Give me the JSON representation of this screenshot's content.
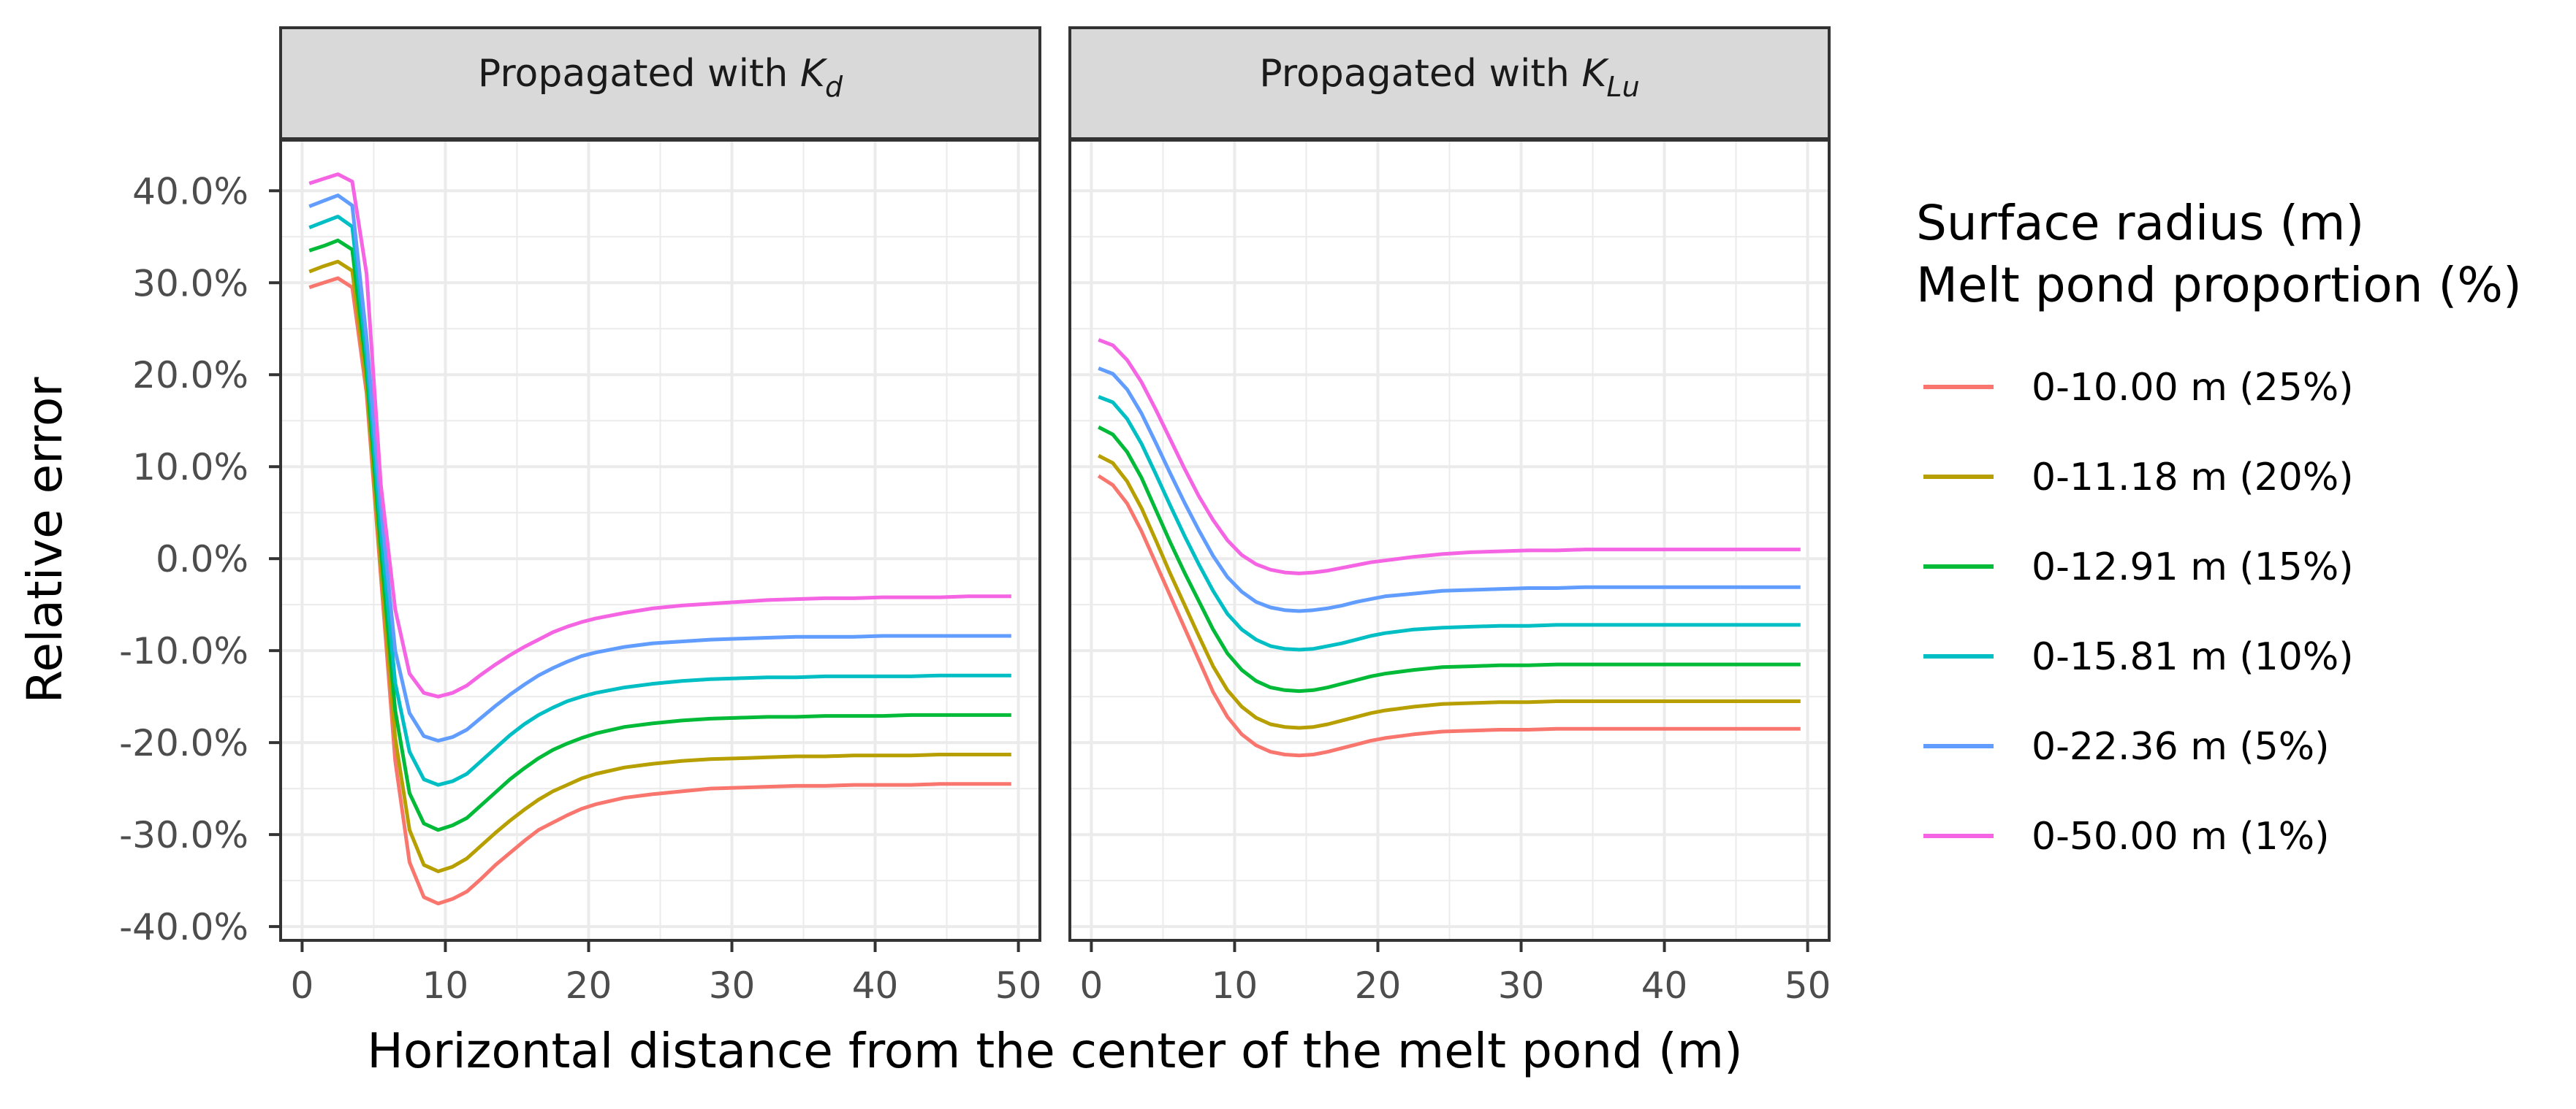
{
  "chart_data": {
    "type": "line",
    "xlabel": "Horizontal distance from the center of the melt pond (m)",
    "ylabel": "Relative error",
    "xlim": [
      -1.5,
      51.5
    ],
    "ylim": [
      -41.5,
      45.5
    ],
    "xticks": [
      0,
      10,
      20,
      30,
      40,
      50
    ],
    "xtick_labels": [
      "0",
      "10",
      "20",
      "30",
      "40",
      "50"
    ],
    "yticks": [
      -40,
      -30,
      -20,
      -10,
      0,
      10,
      20,
      30,
      40
    ],
    "ytick_labels": [
      "-40.0%",
      "-30.0%",
      "-20.0%",
      "-10.0%",
      "0.0%",
      "10.0%",
      "20.0%",
      "30.0%",
      "40.0%"
    ],
    "grid": true,
    "legend": {
      "title_line1": "Surface radius (m)",
      "title_line2": "Melt pond proportion (%)",
      "position": "right"
    },
    "x": [
      0.5,
      1.5,
      2.5,
      3.5,
      4.5,
      5.5,
      6.5,
      7.5,
      8.5,
      9.5,
      10.5,
      11.5,
      12.5,
      13.5,
      14.5,
      15.5,
      16.5,
      17.5,
      18.5,
      19.5,
      20.5,
      22.5,
      24.5,
      26.5,
      28.5,
      30.5,
      32.5,
      34.5,
      36.5,
      38.5,
      40.5,
      42.5,
      44.5,
      46.5,
      49.5
    ],
    "series_meta": [
      {
        "name": "0-10.00 m (25%)",
        "color": "#F8766D"
      },
      {
        "name": "0-11.18 m (20%)",
        "color": "#B79F00"
      },
      {
        "name": "0-12.91 m (15%)",
        "color": "#00BA38"
      },
      {
        "name": "0-15.81 m (10%)",
        "color": "#00BFC4"
      },
      {
        "name": "0-22.36 m (5%)",
        "color": "#619CFF"
      },
      {
        "name": "0-50.00 m (1%)",
        "color": "#F564E3"
      }
    ],
    "panels": [
      {
        "strip_prefix": "Propagated  with ",
        "strip_symbol": "K",
        "strip_subscript": "d",
        "series": [
          {
            "name": "0-10.00 m (25%)",
            "values": [
              29.5,
              30.0,
              30.5,
              29.5,
              18.0,
              -2.0,
              -22.0,
              -33.0,
              -36.8,
              -37.5,
              -37.0,
              -36.2,
              -34.8,
              -33.3,
              -32.0,
              -30.7,
              -29.5,
              -28.7,
              -27.9,
              -27.2,
              -26.7,
              -26.0,
              -25.6,
              -25.3,
              -25.0,
              -24.9,
              -24.8,
              -24.7,
              -24.7,
              -24.6,
              -24.6,
              -24.6,
              -24.5,
              -24.5,
              -24.5
            ]
          },
          {
            "name": "0-11.18 m (20%)",
            "values": [
              31.2,
              31.8,
              32.3,
              31.3,
              19.0,
              -1.0,
              -19.5,
              -29.5,
              -33.3,
              -34.0,
              -33.5,
              -32.6,
              -31.2,
              -29.8,
              -28.5,
              -27.3,
              -26.2,
              -25.3,
              -24.6,
              -23.9,
              -23.4,
              -22.7,
              -22.3,
              -22.0,
              -21.8,
              -21.7,
              -21.6,
              -21.5,
              -21.5,
              -21.4,
              -21.4,
              -21.4,
              -21.3,
              -21.3,
              -21.3
            ]
          },
          {
            "name": "0-12.91 m (15%)",
            "values": [
              33.5,
              34.0,
              34.6,
              33.6,
              20.5,
              1.0,
              -16.5,
              -25.5,
              -28.8,
              -29.5,
              -29.0,
              -28.2,
              -26.8,
              -25.4,
              -24.0,
              -22.8,
              -21.7,
              -20.8,
              -20.1,
              -19.5,
              -19.0,
              -18.3,
              -17.9,
              -17.6,
              -17.4,
              -17.3,
              -17.2,
              -17.2,
              -17.1,
              -17.1,
              -17.1,
              -17.0,
              -17.0,
              -17.0,
              -17.0
            ]
          },
          {
            "name": "0-15.81 m (10%)",
            "values": [
              36.0,
              36.6,
              37.2,
              36.1,
              22.0,
              3.0,
              -13.5,
              -21.0,
              -24.0,
              -24.6,
              -24.2,
              -23.4,
              -22.0,
              -20.6,
              -19.2,
              -18.0,
              -17.0,
              -16.2,
              -15.5,
              -15.0,
              -14.6,
              -14.0,
              -13.6,
              -13.3,
              -13.1,
              -13.0,
              -12.9,
              -12.9,
              -12.8,
              -12.8,
              -12.8,
              -12.8,
              -12.7,
              -12.7,
              -12.7
            ]
          },
          {
            "name": "0-22.36 m (5%)",
            "values": [
              38.3,
              38.9,
              39.5,
              38.4,
              24.0,
              5.5,
              -10.0,
              -16.8,
              -19.3,
              -19.8,
              -19.4,
              -18.6,
              -17.3,
              -16.0,
              -14.8,
              -13.7,
              -12.7,
              -11.9,
              -11.2,
              -10.6,
              -10.2,
              -9.6,
              -9.2,
              -9.0,
              -8.8,
              -8.7,
              -8.6,
              -8.5,
              -8.5,
              -8.5,
              -8.4,
              -8.4,
              -8.4,
              -8.4,
              -8.4
            ]
          },
          {
            "name": "0-50.00 m (1%)",
            "values": [
              40.8,
              41.3,
              41.8,
              41.0,
              31.0,
              8.0,
              -5.5,
              -12.5,
              -14.6,
              -15.0,
              -14.6,
              -13.8,
              -12.6,
              -11.5,
              -10.5,
              -9.6,
              -8.8,
              -8.0,
              -7.4,
              -6.9,
              -6.5,
              -5.9,
              -5.4,
              -5.1,
              -4.9,
              -4.7,
              -4.5,
              -4.4,
              -4.3,
              -4.3,
              -4.2,
              -4.2,
              -4.2,
              -4.1,
              -4.1
            ]
          }
        ]
      },
      {
        "strip_prefix": "Propagated  with ",
        "strip_symbol": "K",
        "strip_subscript": "Lu",
        "series": [
          {
            "name": "0-10.00 m (25%)",
            "values": [
              9.0,
              8.0,
              6.0,
              3.0,
              -0.5,
              -4.0,
              -7.5,
              -11.0,
              -14.5,
              -17.2,
              -19.1,
              -20.3,
              -21.0,
              -21.3,
              -21.4,
              -21.3,
              -21.0,
              -20.6,
              -20.2,
              -19.8,
              -19.5,
              -19.1,
              -18.8,
              -18.7,
              -18.6,
              -18.6,
              -18.5,
              -18.5,
              -18.5,
              -18.5,
              -18.5,
              -18.5,
              -18.5,
              -18.5,
              -18.5
            ]
          },
          {
            "name": "0-11.18 m (20%)",
            "values": [
              11.2,
              10.4,
              8.4,
              5.5,
              2.0,
              -1.6,
              -5.0,
              -8.4,
              -11.7,
              -14.3,
              -16.1,
              -17.3,
              -18.0,
              -18.3,
              -18.4,
              -18.3,
              -18.0,
              -17.6,
              -17.2,
              -16.8,
              -16.5,
              -16.1,
              -15.8,
              -15.7,
              -15.6,
              -15.6,
              -15.5,
              -15.5,
              -15.5,
              -15.5,
              -15.5,
              -15.5,
              -15.5,
              -15.5,
              -15.5
            ]
          },
          {
            "name": "0-12.91 m (15%)",
            "values": [
              14.3,
              13.5,
              11.6,
              8.8,
              5.3,
              1.8,
              -1.5,
              -4.6,
              -7.7,
              -10.3,
              -12.1,
              -13.3,
              -14.0,
              -14.3,
              -14.4,
              -14.3,
              -14.0,
              -13.6,
              -13.2,
              -12.8,
              -12.5,
              -12.1,
              -11.8,
              -11.7,
              -11.6,
              -11.6,
              -11.5,
              -11.5,
              -11.5,
              -11.5,
              -11.5,
              -11.5,
              -11.5,
              -11.5,
              -11.5
            ]
          },
          {
            "name": "0-15.81 m (10%)",
            "values": [
              17.6,
              17.0,
              15.2,
              12.5,
              9.2,
              5.8,
              2.5,
              -0.6,
              -3.5,
              -6.0,
              -7.7,
              -8.8,
              -9.5,
              -9.8,
              -9.9,
              -9.8,
              -9.5,
              -9.2,
              -8.8,
              -8.4,
              -8.1,
              -7.7,
              -7.5,
              -7.4,
              -7.3,
              -7.3,
              -7.2,
              -7.2,
              -7.2,
              -7.2,
              -7.2,
              -7.2,
              -7.2,
              -7.2,
              -7.2
            ]
          },
          {
            "name": "0-22.36 m (5%)",
            "values": [
              20.7,
              20.1,
              18.4,
              15.8,
              12.6,
              9.3,
              6.1,
              3.1,
              0.3,
              -2.0,
              -3.6,
              -4.7,
              -5.3,
              -5.6,
              -5.7,
              -5.6,
              -5.4,
              -5.1,
              -4.7,
              -4.4,
              -4.1,
              -3.8,
              -3.5,
              -3.4,
              -3.3,
              -3.2,
              -3.2,
              -3.1,
              -3.1,
              -3.1,
              -3.1,
              -3.1,
              -3.1,
              -3.1,
              -3.1
            ]
          },
          {
            "name": "0-50.00 m (1%)",
            "values": [
              23.8,
              23.2,
              21.6,
              19.2,
              16.2,
              13.0,
              9.8,
              6.8,
              4.2,
              2.0,
              0.4,
              -0.6,
              -1.2,
              -1.5,
              -1.6,
              -1.5,
              -1.3,
              -1.0,
              -0.7,
              -0.4,
              -0.2,
              0.2,
              0.5,
              0.7,
              0.8,
              0.9,
              0.9,
              1.0,
              1.0,
              1.0,
              1.0,
              1.0,
              1.0,
              1.0,
              1.0
            ]
          }
        ]
      }
    ]
  }
}
